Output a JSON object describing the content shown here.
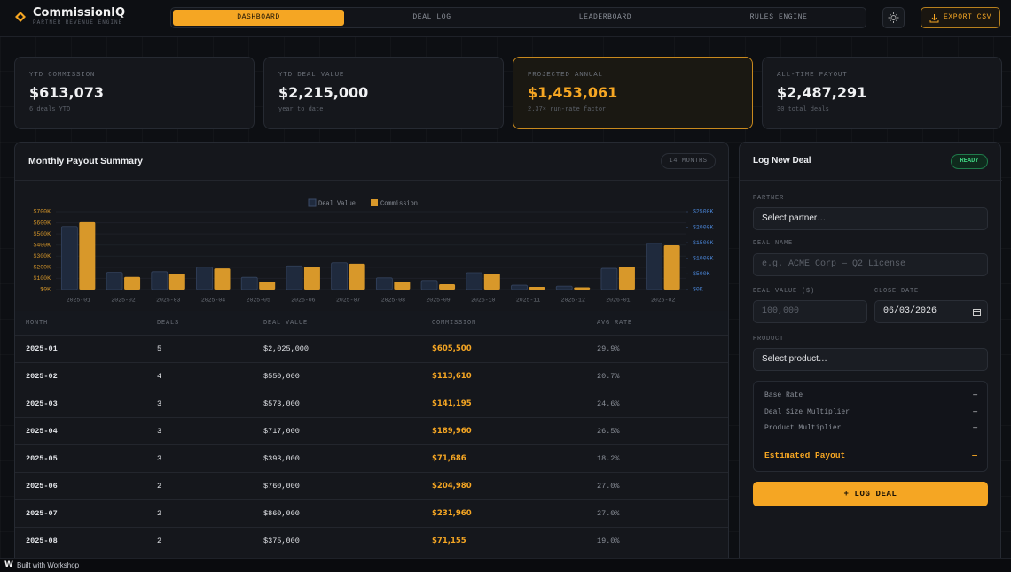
{
  "header": {
    "logo": "CommissionIQ",
    "tagline": "PARTNER REVENUE ENGINE",
    "nav": [
      "DASHBOARD",
      "DEAL LOG",
      "LEADERBOARD",
      "RULES ENGINE"
    ],
    "export": "EXPORT CSV"
  },
  "kpis": [
    {
      "label": "YTD COMMISSION",
      "value": "$613,073",
      "note": "6 deals YTD"
    },
    {
      "label": "YTD DEAL VALUE",
      "value": "$2,215,000",
      "note": "year to date"
    },
    {
      "label": "PROJECTED ANNUAL",
      "value": "$1,453,061",
      "note": "2.37× run-rate factor"
    },
    {
      "label": "ALL-TIME PAYOUT",
      "value": "$2,487,291",
      "note": "30 total deals"
    }
  ],
  "summary": {
    "title": "Monthly Payout Summary",
    "badge": "14 MONTHS"
  },
  "chart_data": {
    "type": "bar",
    "categories": [
      "2025-01",
      "2025-02",
      "2025-03",
      "2025-04",
      "2025-05",
      "2025-06",
      "2025-07",
      "2025-08",
      "2025-09",
      "2025-10",
      "2025-11",
      "2025-12",
      "2026-01",
      "2026-02"
    ],
    "series": [
      {
        "name": "Deal Value",
        "color": "#1f2a3d",
        "axis": "y2",
        "values": [
          2025000,
          550000,
          573000,
          717000,
          393000,
          760000,
          860000,
          375000,
          290000,
          540000,
          140000,
          110000,
          680000,
          1480000
        ]
      },
      {
        "name": "Commission",
        "color": "#d8982a",
        "values": [
          605500,
          113610,
          141195,
          189960,
          71686,
          204980,
          231960,
          71155,
          48000,
          143000,
          24000,
          20000,
          207000,
          398000
        ]
      }
    ],
    "ylim": [
      0,
      700000
    ],
    "yticks": [
      {
        "value": 0,
        "label": "$0K"
      },
      {
        "value": 100000,
        "label": "$100K"
      },
      {
        "value": 200000,
        "label": "$200K"
      },
      {
        "value": 300000,
        "label": "$300K"
      },
      {
        "value": 400000,
        "label": "$400K"
      },
      {
        "value": 500000,
        "label": "$500K"
      },
      {
        "value": 600000,
        "label": "$600K"
      },
      {
        "value": 700000,
        "label": "$700K"
      }
    ],
    "y2lim": [
      0,
      2500000
    ],
    "y2ticks": [
      {
        "value": 0,
        "label": "$0K"
      },
      {
        "value": 500000,
        "label": "$500K"
      },
      {
        "value": 1000000,
        "label": "$1000K"
      },
      {
        "value": 1500000,
        "label": "$1500K"
      },
      {
        "value": 2000000,
        "label": "$2000K"
      },
      {
        "value": 2500000,
        "label": "$2500K"
      }
    ],
    "grid": true,
    "legend": "top"
  },
  "table": {
    "columns": [
      "MONTH",
      "DEALS",
      "DEAL VALUE",
      "COMMISSION",
      "AVG RATE"
    ],
    "rows": [
      [
        "2025-01",
        "5",
        "$2,025,000",
        "$605,500",
        "29.9%"
      ],
      [
        "2025-02",
        "4",
        "$550,000",
        "$113,610",
        "20.7%"
      ],
      [
        "2025-03",
        "3",
        "$573,000",
        "$141,195",
        "24.6%"
      ],
      [
        "2025-04",
        "3",
        "$717,000",
        "$189,960",
        "26.5%"
      ],
      [
        "2025-05",
        "3",
        "$393,000",
        "$71,686",
        "18.2%"
      ],
      [
        "2025-06",
        "2",
        "$760,000",
        "$204,980",
        "27.0%"
      ],
      [
        "2025-07",
        "2",
        "$860,000",
        "$231,960",
        "27.0%"
      ],
      [
        "2025-08",
        "2",
        "$375,000",
        "$71,155",
        "19.0%"
      ]
    ]
  },
  "form": {
    "title": "Log New Deal",
    "status": "READY",
    "partner_label": "PARTNER",
    "partner_value": "Select partner…",
    "deal_name_label": "DEAL NAME",
    "deal_name_placeholder": "e.g. ACME Corp — Q2 License",
    "deal_value_label": "DEAL VALUE ($)",
    "deal_value_placeholder": "100,000",
    "close_date_label": "CLOSE DATE",
    "close_date_value": "06/03/2026",
    "product_label": "PRODUCT",
    "product_value": "Select product…",
    "breakdown": [
      {
        "label": "Base Rate",
        "value": "—"
      },
      {
        "label": "Deal Size Multiplier",
        "value": "—"
      },
      {
        "label": "Product Multiplier",
        "value": "—"
      }
    ],
    "estimate": {
      "label": "Estimated Payout",
      "value": "—"
    },
    "submit": "+ LOG DEAL"
  },
  "footer": "Built with Workshop"
}
